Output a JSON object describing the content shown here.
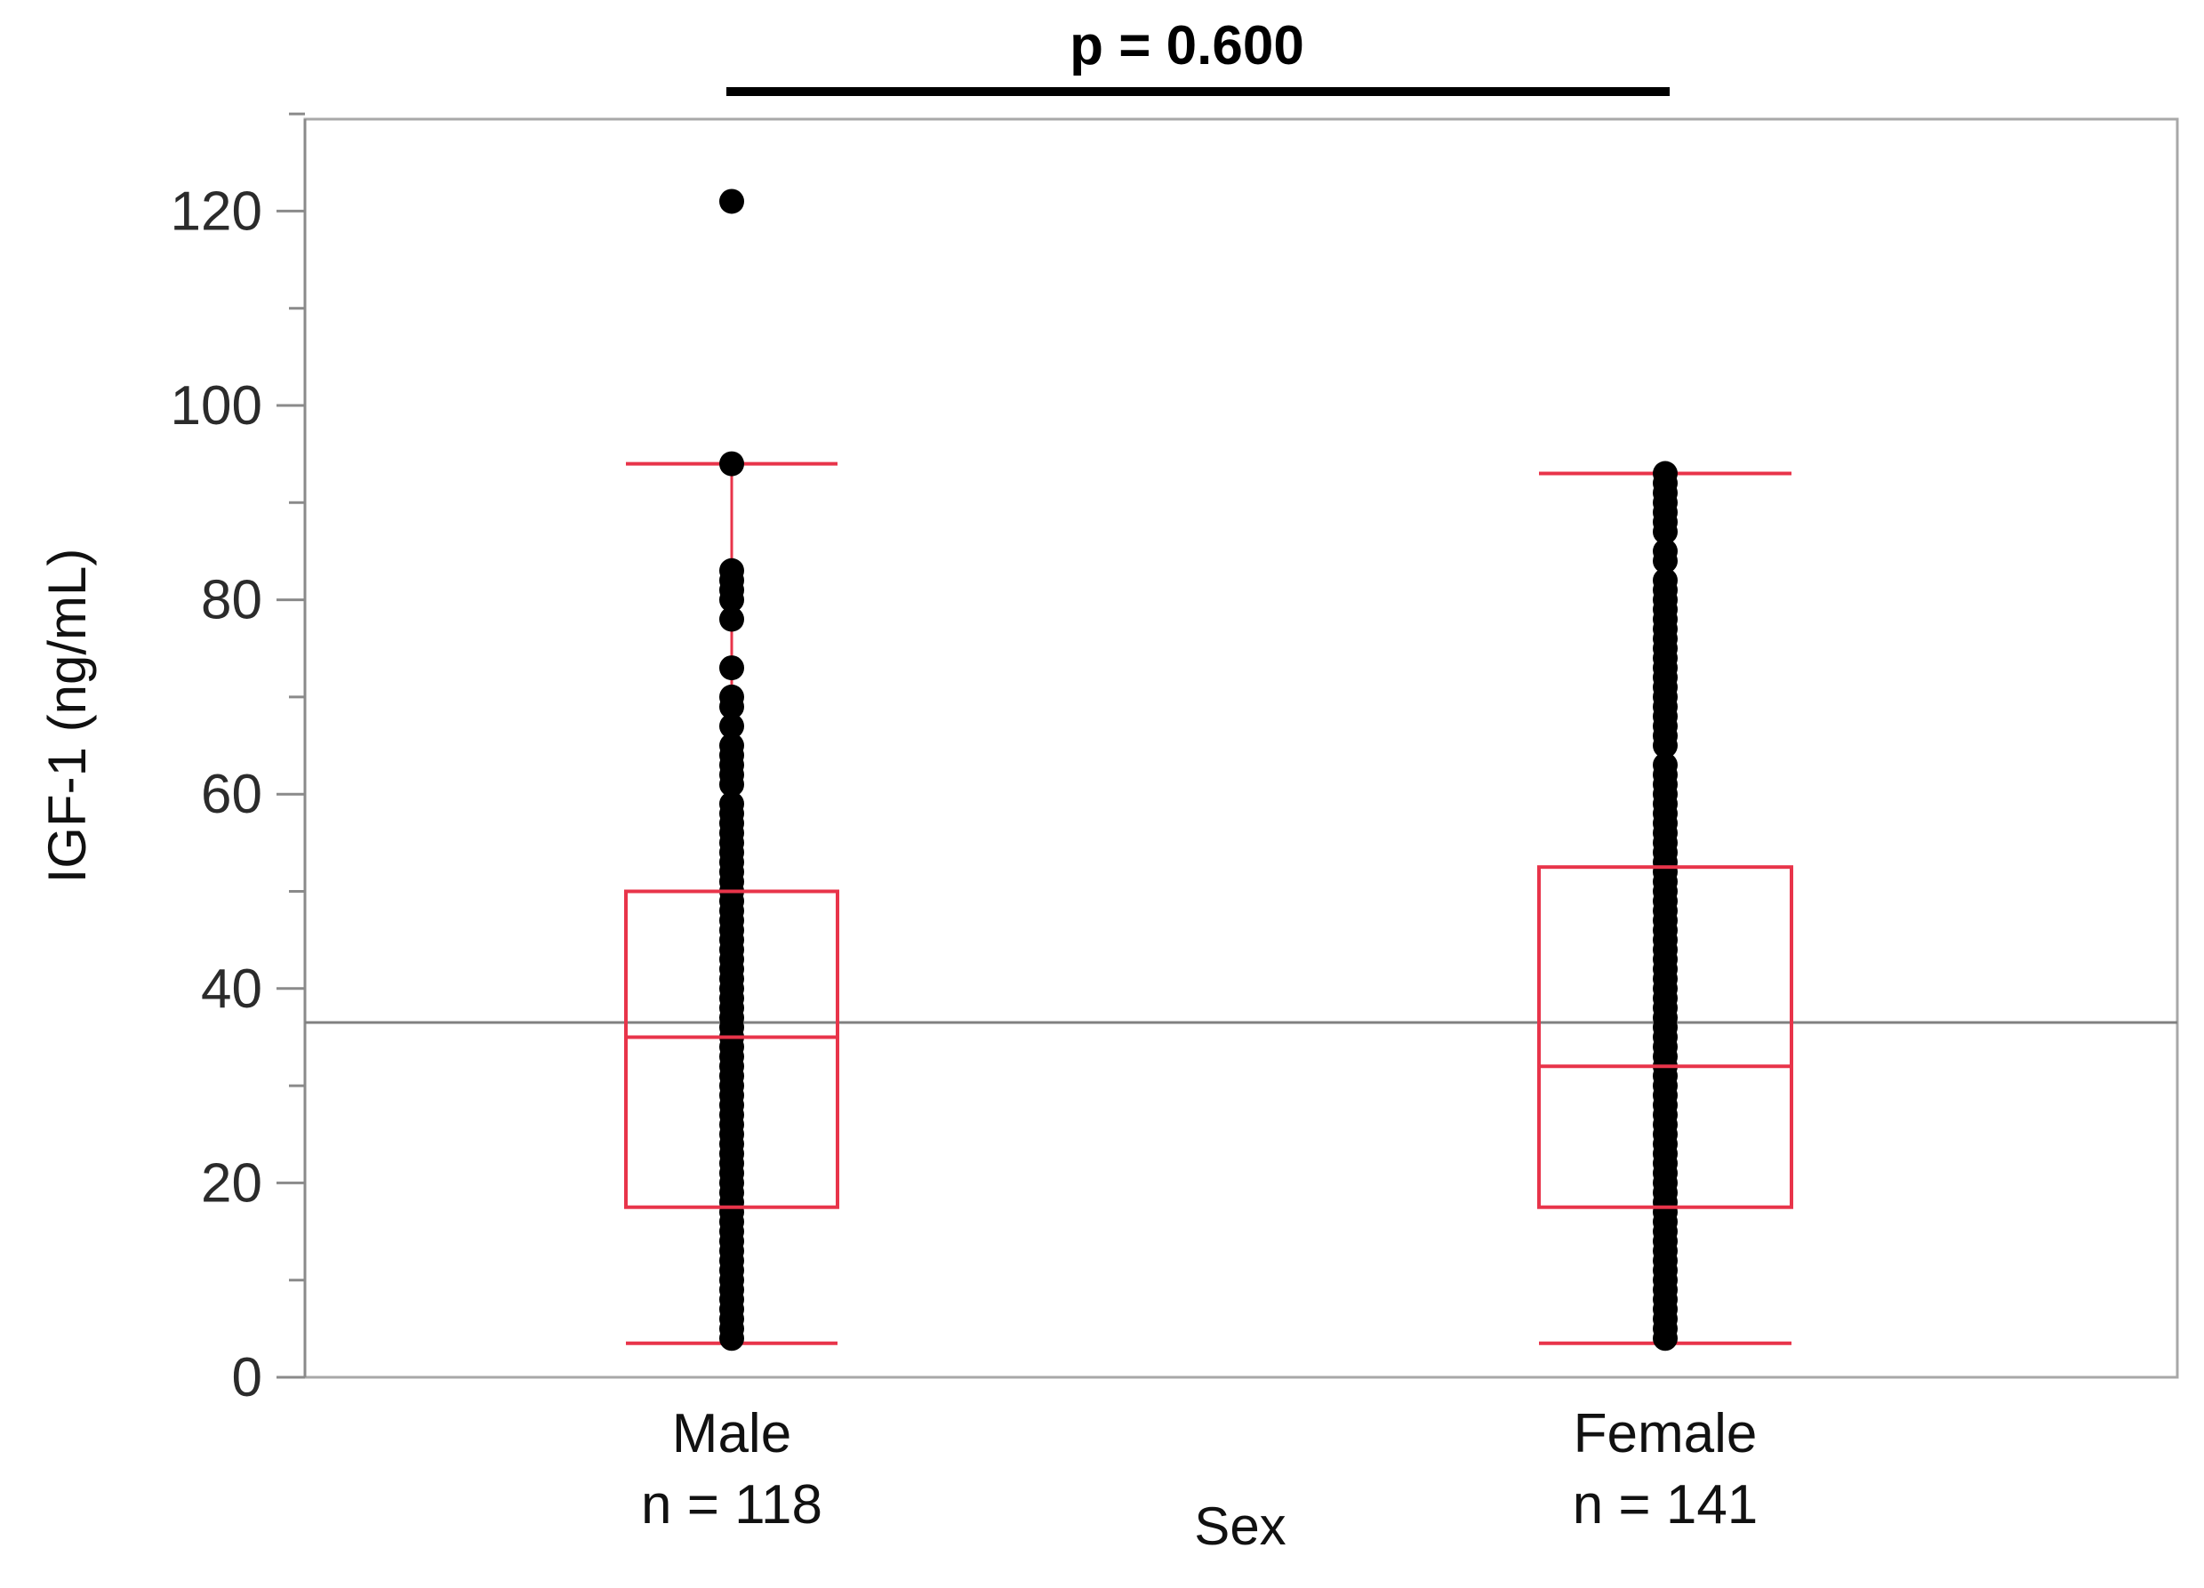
{
  "chart_data": {
    "type": "box",
    "title": "",
    "annotation": {
      "text": "p = 0.600"
    },
    "xlabel": "Sex",
    "ylabel": "IGF-1 (ng/mL)",
    "ylim": [
      0,
      130
    ],
    "yticks": [
      0,
      20,
      40,
      60,
      80,
      100,
      120
    ],
    "grand_mean": 36.5,
    "groups": [
      {
        "name": "Male",
        "n_label": "n = 118",
        "whisker_low": 3.5,
        "q1": 17.5,
        "median": 35,
        "q3": 50,
        "whisker_high": 94,
        "points": [
          121,
          94,
          83,
          82,
          81,
          80,
          78,
          73,
          70,
          69,
          67,
          65,
          64,
          63,
          62,
          61,
          59,
          58,
          57,
          56,
          55,
          54,
          53,
          52,
          51,
          50,
          49,
          48,
          47,
          46,
          45,
          44,
          43,
          42,
          41,
          40,
          39,
          38,
          37,
          36,
          35,
          34,
          33,
          32,
          31,
          30,
          29,
          28,
          27,
          26,
          25,
          24,
          23,
          22,
          21,
          20,
          19,
          18,
          17,
          16,
          15,
          14,
          13,
          12,
          11,
          10,
          9,
          8,
          7,
          6,
          5,
          4
        ]
      },
      {
        "name": "Female",
        "n_label": "n = 141",
        "whisker_low": 3.5,
        "q1": 17.5,
        "median": 32,
        "q3": 52.5,
        "whisker_high": 93,
        "points": [
          93,
          92,
          91,
          90,
          89,
          88,
          87,
          85,
          84,
          82,
          81,
          80,
          79,
          78,
          77,
          76,
          75,
          74,
          73,
          72,
          71,
          70,
          69,
          68,
          67,
          66,
          65,
          63,
          62,
          61,
          60,
          59,
          58,
          57,
          56,
          55,
          54,
          53,
          52,
          51,
          50,
          49,
          48,
          47,
          46,
          45,
          44,
          43,
          42,
          41,
          40,
          39,
          38,
          37,
          36,
          35,
          34,
          33,
          32,
          31,
          30,
          29,
          28,
          27,
          26,
          25,
          24,
          23,
          22,
          21,
          20,
          19,
          18,
          17,
          16,
          15,
          14,
          13,
          12,
          11,
          10,
          9,
          8,
          7,
          6,
          5,
          4
        ]
      }
    ]
  },
  "colors": {
    "box": "#e8344a",
    "points": "#000000",
    "mean_line": "#808080",
    "frame": "#a8a8a8",
    "axis": "#8a8a8a"
  }
}
